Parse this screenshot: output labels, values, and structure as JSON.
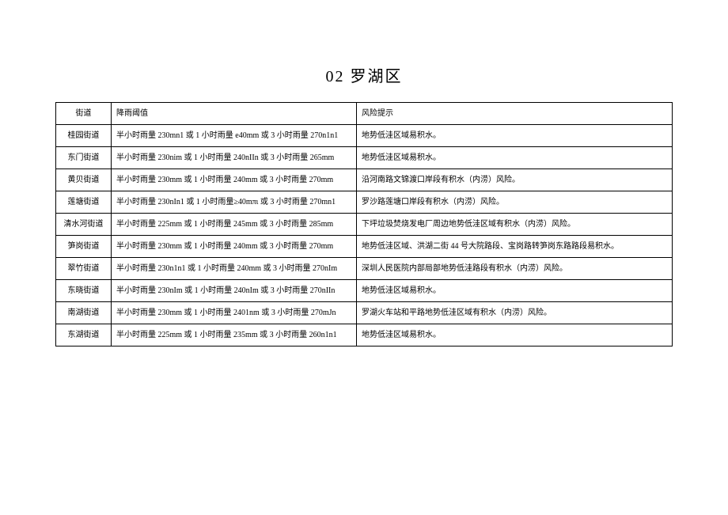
{
  "title": "02 罗湖区",
  "columns": [
    "街道",
    "降雨阈值",
    "风险提示"
  ],
  "rows": [
    {
      "street": "桂园街道",
      "threshold": "半小时雨量 230mn1 或 1 小时雨量 e40mm 或 3 小时雨量 270n1n1",
      "risk": "地势低洼区域易积水。"
    },
    {
      "street": "东门街道",
      "threshold": "半小时雨量 230nim 或 1 小时雨量 240nIIn 或 3 小时雨量 265mm",
      "risk": "地势低洼区域易积水。"
    },
    {
      "street": "黄贝街道",
      "threshold": "半小时雨量 230mm 或 1 小时雨量 240mm 或 3 小时雨量 270mm",
      "risk": "沿河南路文锦渡口岸段有积水（内涝）风险。"
    },
    {
      "street": "莲塘街道",
      "threshold": "半小时雨量 230nIn1 或 1 小时雨量≥40mπι 或 3 小时雨量 270mn1",
      "risk": "罗沙路莲塘口岸段有积水（内涝）风险。"
    },
    {
      "street": "清水河街道",
      "threshold": "半小时雨量 225mm 或 1 小时雨量 245mm 或 3 小时雨量 285mm",
      "risk": "下坪垃圾焚烧发电厂周边地势低洼区域有积水（内涝）风险。"
    },
    {
      "street": "笋岗街道",
      "threshold": "半小时雨量 230mm 或 1 小时雨量 240mm 或 3 小时雨量 270mm",
      "risk": "地势低洼区域、洪湖二街 44 号大院路段、宝岗路转笋岗东路路段易积水。"
    },
    {
      "street": "翠竹街道",
      "threshold": "半小时雨量 230n1n1 或 1 小时雨量 240mm 或 3 小时雨量 270nIm",
      "risk": "深圳人民医院内部局部地势低洼路段有积水（内涝）风险。"
    },
    {
      "street": "东晓街道",
      "threshold": "半小时雨量 230nIm 或 1 小时雨量 240nIm 或 3 小时雨量 270nIIn",
      "risk": "地势低洼区域易积水。"
    },
    {
      "street": "南湖街道",
      "threshold": "半小时雨量 230mm 或 1 小时雨量 2401nm 或 3 小时雨量 270mJn",
      "risk": "罗湖火车站和平路地势低洼区域有积水（内涝）风险。"
    },
    {
      "street": "东湖街道",
      "threshold": "半小时雨量 225mm 或 1 小时雨量 235mm 或 3 小时雨量 260n1n1",
      "risk": "地势低洼区域易积水。"
    }
  ]
}
